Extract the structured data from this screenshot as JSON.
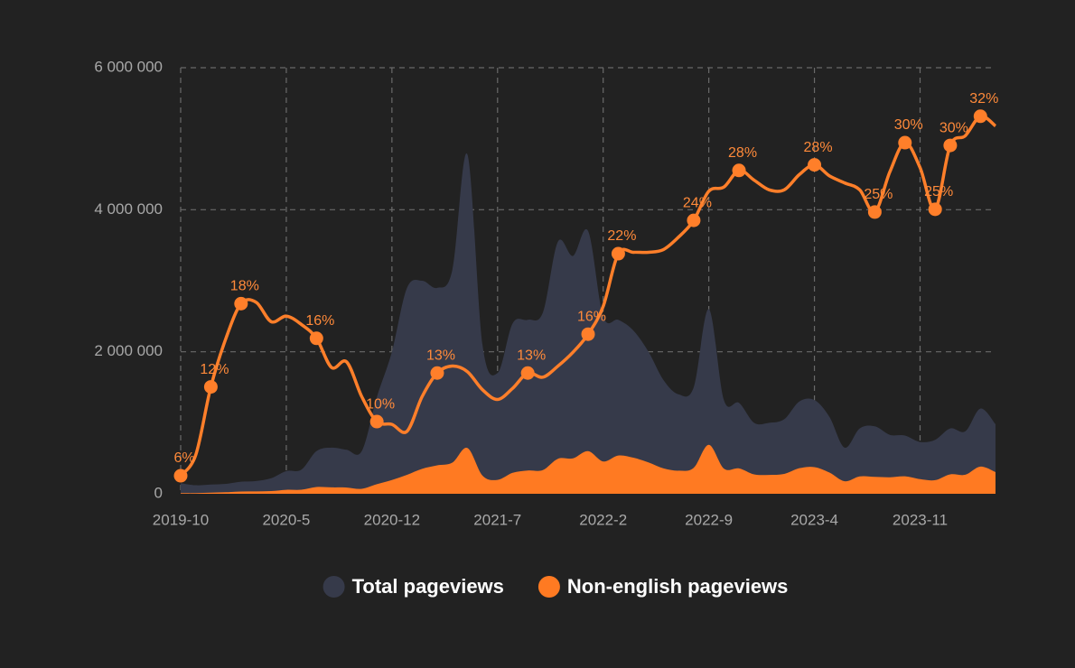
{
  "chart_data": {
    "type": "area",
    "categories": [
      "2019-10",
      null,
      null,
      null,
      null,
      null,
      null,
      "2020-5",
      null,
      null,
      null,
      null,
      null,
      null,
      "2020-12",
      null,
      null,
      null,
      null,
      null,
      null,
      "2021-7",
      null,
      null,
      null,
      null,
      null,
      null,
      "2022-2",
      null,
      null,
      null,
      null,
      null,
      null,
      "2022-9",
      null,
      null,
      null,
      null,
      null,
      null,
      "2023-4",
      null,
      null,
      null,
      null,
      null,
      null,
      "2023-11",
      null,
      null,
      null,
      null,
      null
    ],
    "ylim": [
      0,
      6000000
    ],
    "yticks": [
      0,
      {
        "value": 2000000,
        "label": "2 000 000"
      },
      {
        "value": 4000000,
        "label": "4 000 000"
      },
      {
        "value": 6000000,
        "label": "6 000 000"
      }
    ],
    "y2lim": [
      4.7,
      35.4
    ],
    "grid": true,
    "legend": "bottom",
    "series": [
      {
        "name": "Total pageviews",
        "color": "#363a4a",
        "values": [
          150000,
          120000,
          130000,
          140000,
          170000,
          180000,
          220000,
          320000,
          340000,
          600000,
          650000,
          620000,
          600000,
          1360000,
          2000000,
          2900000,
          3000000,
          2900000,
          3150000,
          4780000,
          2100000,
          1700000,
          2400000,
          2450000,
          2550000,
          3550000,
          3350000,
          3700000,
          2500000,
          2450000,
          2300000,
          2000000,
          1600000,
          1400000,
          1500000,
          2600000,
          1320000,
          1280000,
          1000000,
          1000000,
          1050000,
          1300000,
          1320000,
          1080000,
          650000,
          920000,
          950000,
          830000,
          820000,
          730000,
          760000,
          920000,
          880000,
          1200000,
          980000
        ]
      },
      {
        "name": "Non-english pageviews",
        "color": "#ff7a22",
        "values": [
          9000,
          9000,
          16000,
          22000,
          31000,
          33000,
          38000,
          56000,
          57000,
          95000,
          90000,
          88000,
          70000,
          135000,
          194000,
          267000,
          351000,
          400000,
          438000,
          645000,
          256000,
          196000,
          295000,
          328000,
          334000,
          493000,
          499000,
          600000,
          455000,
          539000,
          508000,
          442000,
          357000,
          325000,
          366000,
          689000,
          354000,
          358000,
          273000,
          266000,
          279000,
          360000,
          375000,
          298000,
          176000,
          245000,
          238000,
          232000,
          246000,
          206000,
          192000,
          274000,
          268000,
          383000,
          306000
        ]
      },
      {
        "color": "#ff7f2a",
        "axis": "y2",
        "values": [
          6.0,
          7.5,
          12.4,
          15.9,
          18.4,
          18.5,
          17.1,
          17.5,
          16.9,
          15.9,
          13.8,
          14.2,
          11.7,
          9.9,
          9.7,
          9.2,
          11.7,
          13.4,
          13.9,
          13.5,
          12.2,
          11.5,
          12.3,
          13.4,
          13.1,
          13.9,
          14.9,
          16.2,
          18.2,
          22.0,
          22.1,
          22.1,
          22.3,
          23.2,
          24.4,
          26.5,
          26.8,
          28.0,
          27.3,
          26.6,
          26.6,
          27.7,
          28.4,
          27.6,
          27.1,
          26.6,
          25.0,
          27.9,
          30.0,
          28.2,
          25.2,
          29.8,
          30.5,
          31.9,
          31.2
        ],
        "value_labels": [
          "6%",
          null,
          "12%",
          null,
          "18%",
          null,
          null,
          null,
          null,
          "16%",
          null,
          null,
          null,
          "10%",
          null,
          null,
          null,
          "13%",
          null,
          null,
          null,
          null,
          null,
          "13%",
          null,
          null,
          null,
          "16%",
          null,
          "22%",
          null,
          null,
          null,
          null,
          "24%",
          null,
          null,
          "28%",
          null,
          null,
          null,
          null,
          "28%",
          null,
          null,
          null,
          "25%",
          null,
          "30%",
          null,
          "25%",
          "30%",
          null,
          "32%",
          null
        ]
      }
    ]
  }
}
